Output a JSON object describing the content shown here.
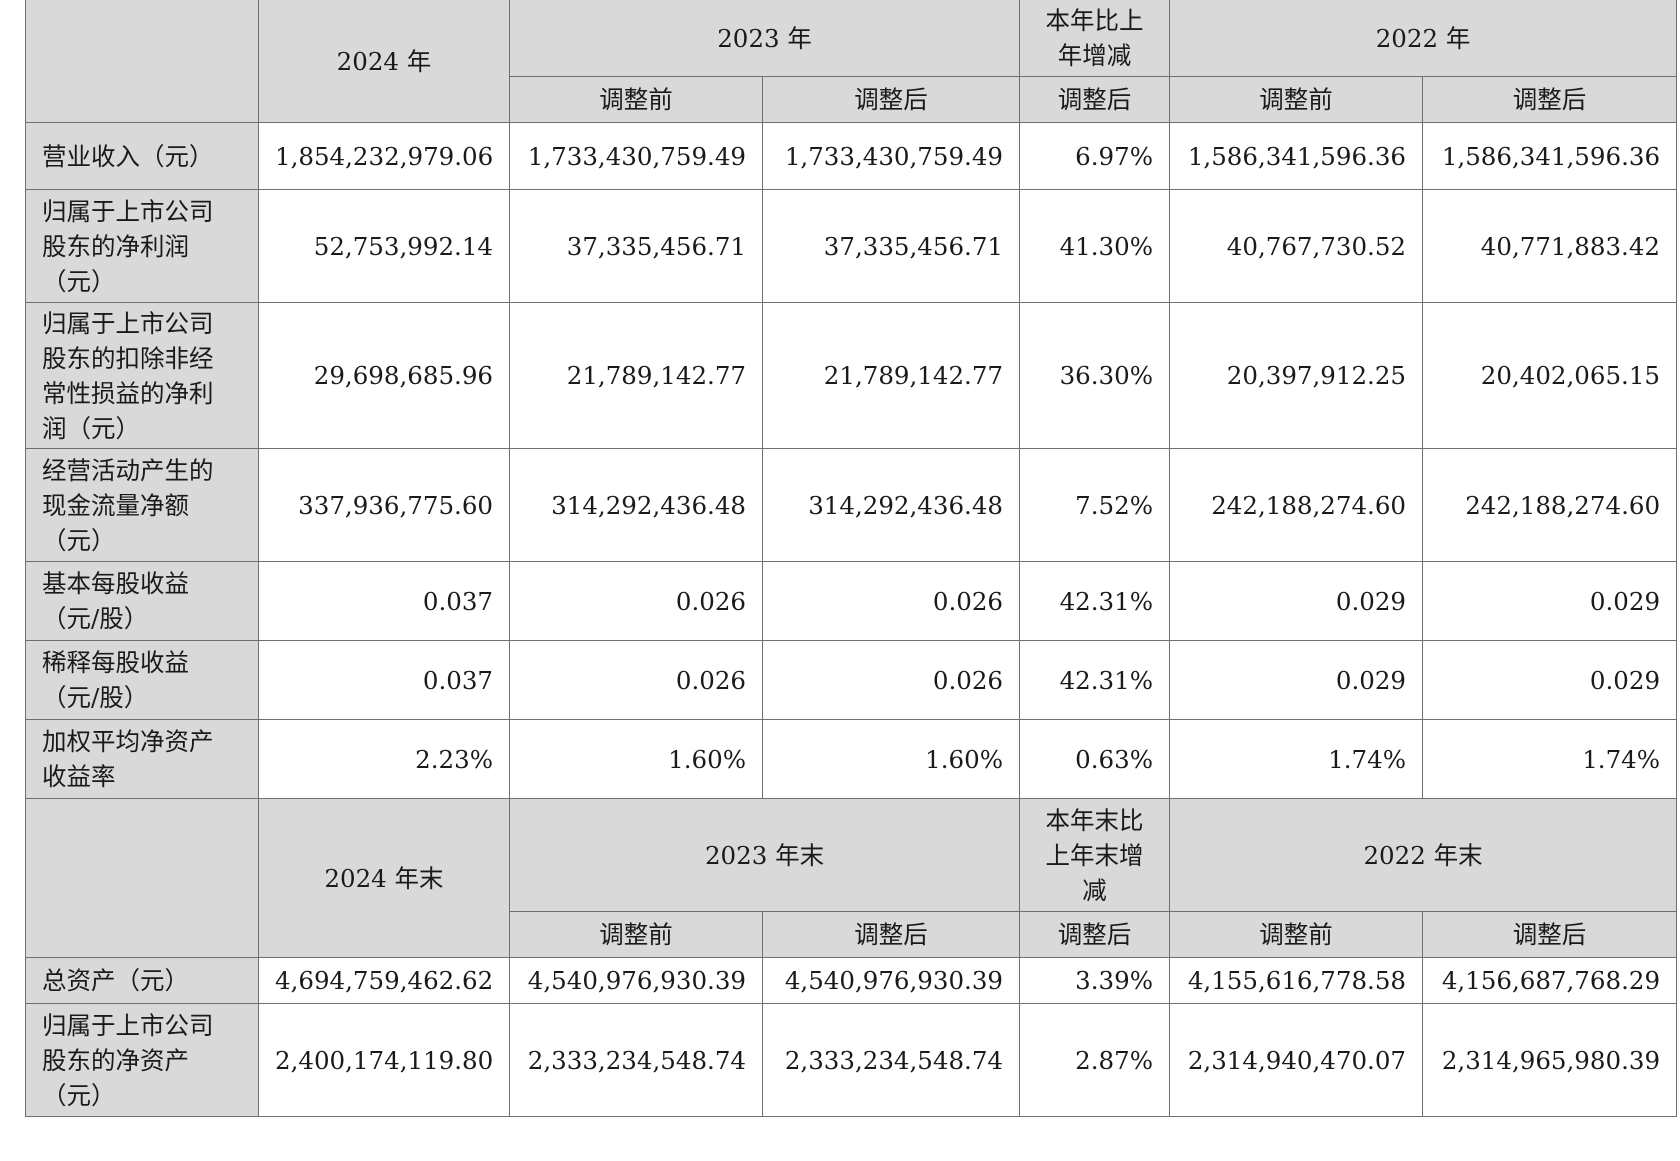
{
  "header_top": {
    "y2024": "2024 年",
    "y2023": "2023 年",
    "change": "本年比上\n年增减",
    "y2022": "2022 年",
    "sub": [
      "调整前",
      "调整后",
      "调整后",
      "调整前",
      "调整后"
    ]
  },
  "rows_top": [
    {
      "label": "营业收入（元）",
      "values": [
        "1,854,232,979.06",
        "1,733,430,759.49",
        "1,733,430,759.49",
        "6.97%",
        "1,586,341,596.36",
        "1,586,341,596.36"
      ]
    },
    {
      "label": "归属于上市公司\n股东的净利润\n（元）",
      "values": [
        "52,753,992.14",
        "37,335,456.71",
        "37,335,456.71",
        "41.30%",
        "40,767,730.52",
        "40,771,883.42"
      ]
    },
    {
      "label": "归属于上市公司\n股东的扣除非经\n常性损益的净利\n润（元）",
      "values": [
        "29,698,685.96",
        "21,789,142.77",
        "21,789,142.77",
        "36.30%",
        "20,397,912.25",
        "20,402,065.15"
      ]
    },
    {
      "label": "经营活动产生的\n现金流量净额\n（元）",
      "values": [
        "337,936,775.60",
        "314,292,436.48",
        "314,292,436.48",
        "7.52%",
        "242,188,274.60",
        "242,188,274.60"
      ]
    },
    {
      "label": "基本每股收益\n（元/股）",
      "values": [
        "0.037",
        "0.026",
        "0.026",
        "42.31%",
        "0.029",
        "0.029"
      ]
    },
    {
      "label": "稀释每股收益\n（元/股）",
      "values": [
        "0.037",
        "0.026",
        "0.026",
        "42.31%",
        "0.029",
        "0.029"
      ]
    },
    {
      "label": "加权平均净资产\n收益率",
      "values": [
        "2.23%",
        "1.60%",
        "1.60%",
        "0.63%",
        "1.74%",
        "1.74%"
      ]
    }
  ],
  "header_bottom": {
    "y2024": "2024 年末",
    "y2023": "2023 年末",
    "change": "本年末比\n上年末增\n减",
    "y2022": "2022 年末",
    "sub": [
      "调整前",
      "调整后",
      "调整后",
      "调整前",
      "调整后"
    ]
  },
  "rows_bottom": [
    {
      "label": "总资产（元）",
      "values": [
        "4,694,759,462.62",
        "4,540,976,930.39",
        "4,540,976,930.39",
        "3.39%",
        "4,155,616,778.58",
        "4,156,687,768.29"
      ]
    },
    {
      "label": "归属于上市公司\n股东的净资产\n（元）",
      "values": [
        "2,400,174,119.80",
        "2,333,234,548.74",
        "2,333,234,548.74",
        "2.87%",
        "2,314,940,470.07",
        "2,314,965,980.39"
      ]
    }
  ]
}
